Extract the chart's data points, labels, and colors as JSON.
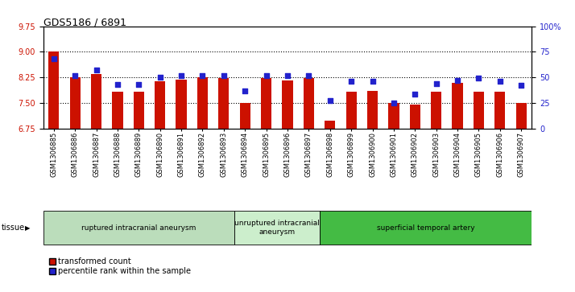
{
  "title": "GDS5186 / 6891",
  "samples": [
    "GSM1306885",
    "GSM1306886",
    "GSM1306887",
    "GSM1306888",
    "GSM1306889",
    "GSM1306890",
    "GSM1306891",
    "GSM1306892",
    "GSM1306893",
    "GSM1306894",
    "GSM1306895",
    "GSM1306896",
    "GSM1306897",
    "GSM1306898",
    "GSM1306899",
    "GSM1306900",
    "GSM1306901",
    "GSM1306902",
    "GSM1306903",
    "GSM1306904",
    "GSM1306905",
    "GSM1306906",
    "GSM1306907"
  ],
  "bar_values": [
    9.0,
    8.25,
    8.35,
    7.83,
    7.83,
    8.13,
    8.18,
    8.25,
    8.22,
    7.5,
    8.22,
    8.15,
    8.22,
    6.97,
    7.83,
    7.85,
    7.5,
    7.45,
    7.83,
    8.1,
    7.83,
    7.83,
    7.5
  ],
  "percentile_values": [
    68,
    52,
    57,
    43,
    43,
    50,
    52,
    52,
    52,
    37,
    52,
    52,
    52,
    27,
    46,
    46,
    25,
    34,
    44,
    47,
    49,
    46,
    42
  ],
  "ylim_left": [
    6.75,
    9.75
  ],
  "ylim_right": [
    0,
    100
  ],
  "yticks_left": [
    6.75,
    7.5,
    8.25,
    9.0,
    9.75
  ],
  "yticks_right": [
    0,
    25,
    50,
    75,
    100
  ],
  "bar_color": "#CC1100",
  "dot_color": "#2222CC",
  "plot_bg_color": "#FFFFFF",
  "tissue_groups": [
    {
      "label": "ruptured intracranial aneurysm",
      "start": 0,
      "end": 9,
      "color": "#BBDDBB"
    },
    {
      "label": "unruptured intracranial\naneurysm",
      "start": 9,
      "end": 13,
      "color": "#CCEECC"
    },
    {
      "label": "superficial temporal artery",
      "start": 13,
      "end": 23,
      "color": "#44BB44"
    }
  ],
  "legend_items": [
    {
      "label": "transformed count",
      "color": "#CC1100"
    },
    {
      "label": "percentile rank within the sample",
      "color": "#2222CC"
    }
  ],
  "grid_yticks": [
    7.5,
    8.25,
    9.0
  ],
  "tick_fontsize": 7,
  "label_fontsize": 7
}
